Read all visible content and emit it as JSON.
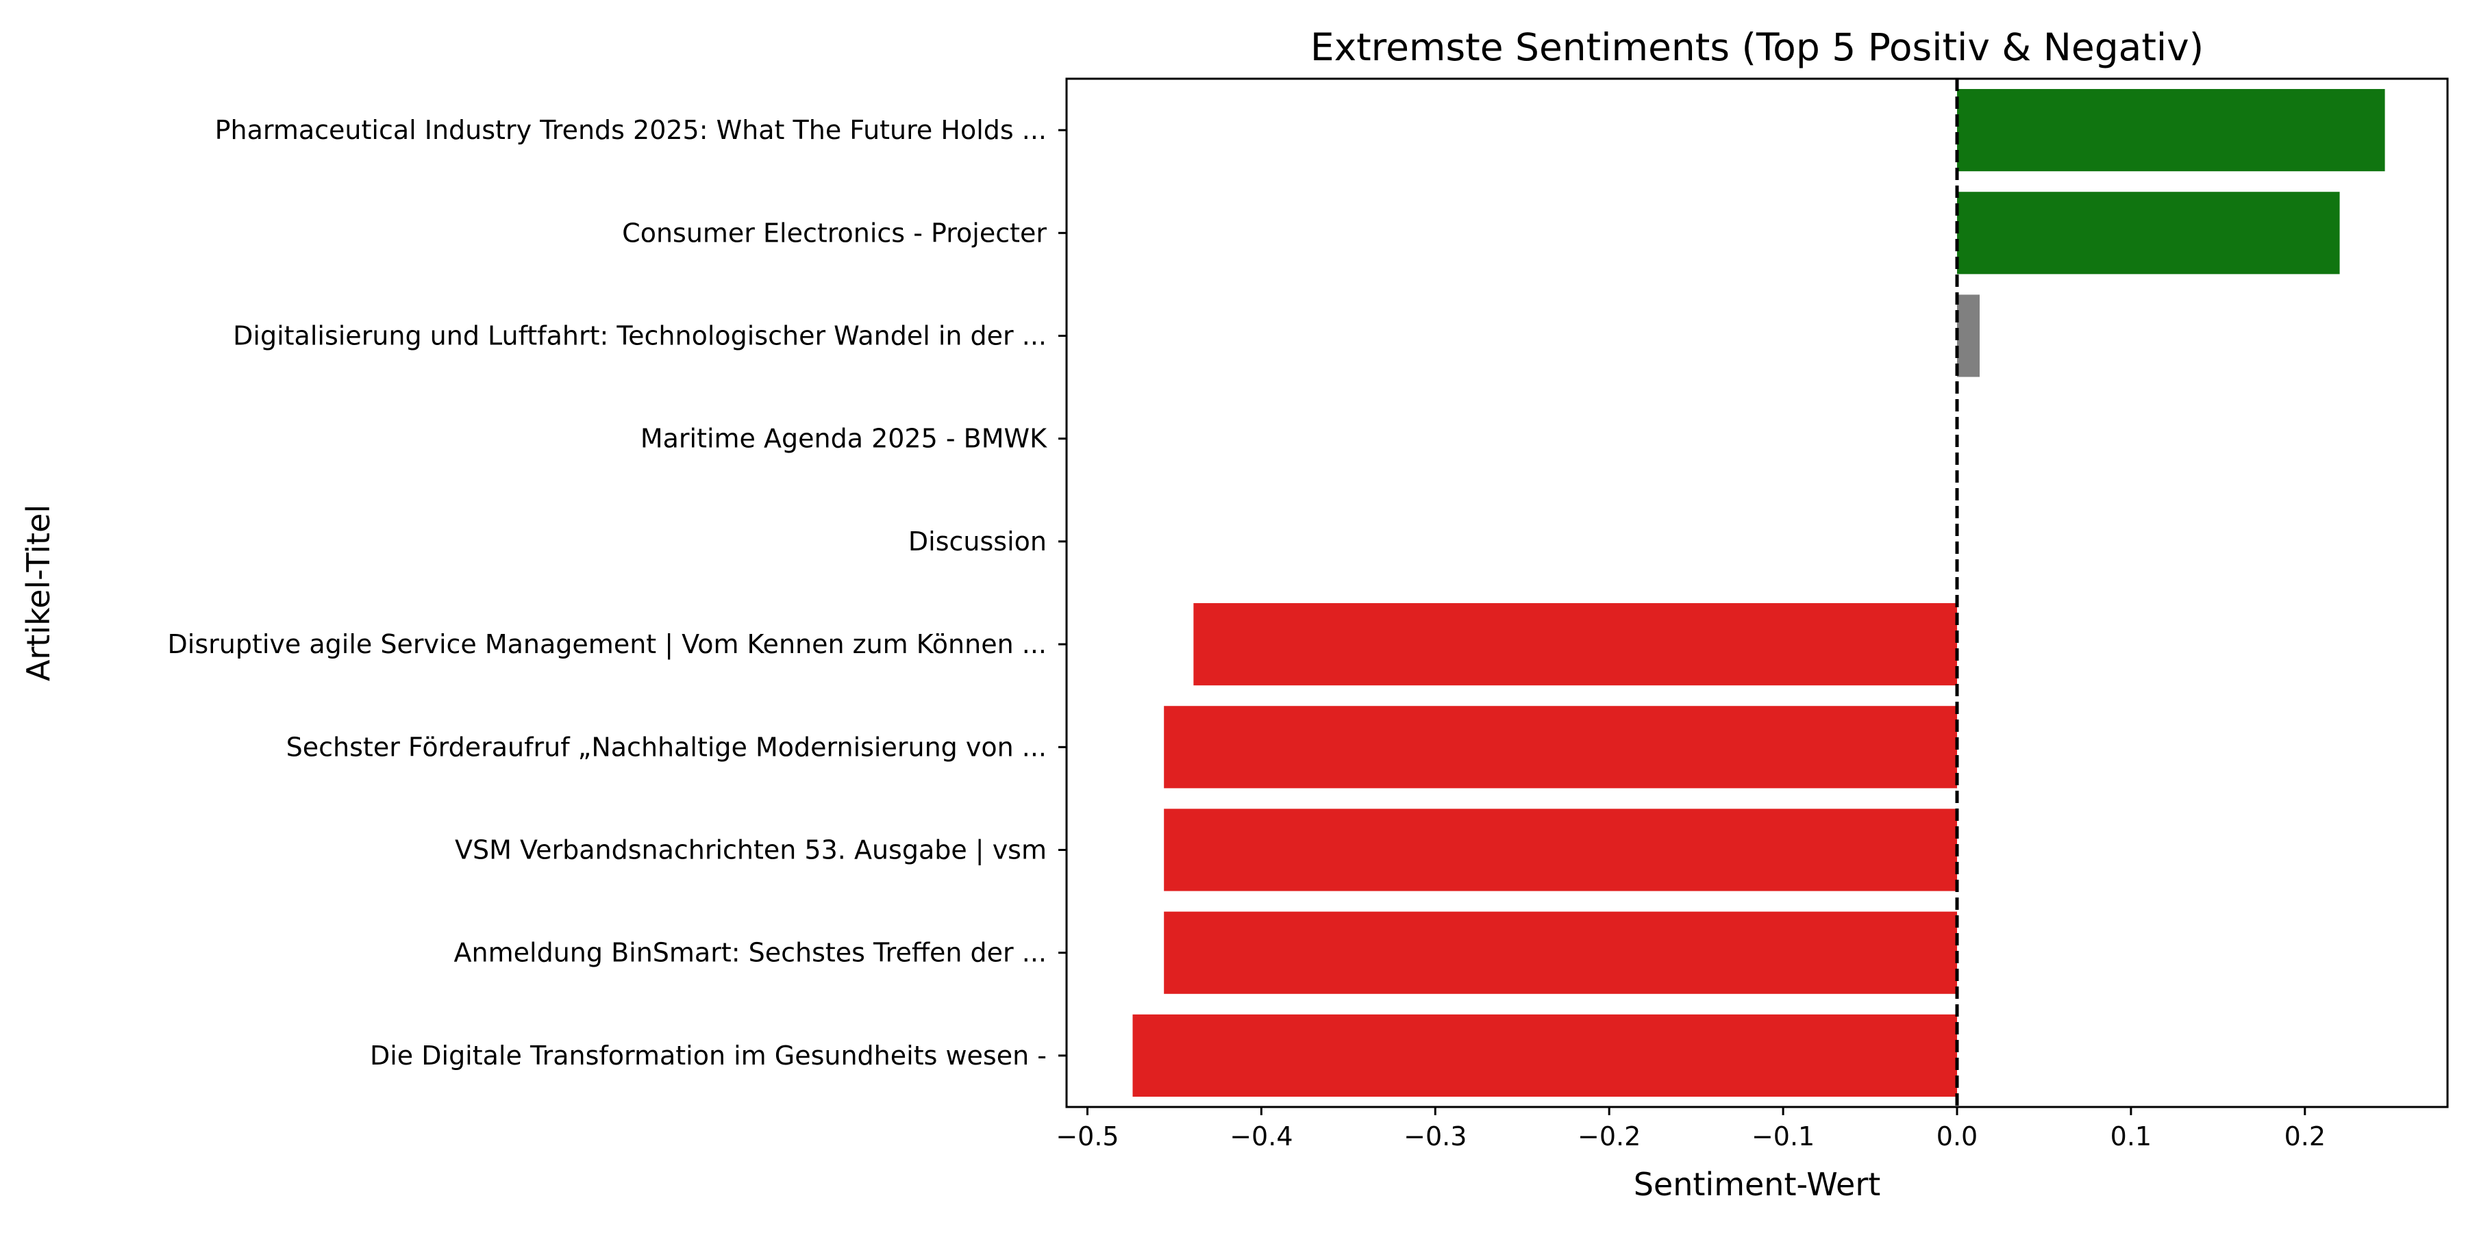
{
  "chart_data": {
    "type": "bar",
    "orientation": "horizontal",
    "title": "Extremste Sentiments (Top 5 Positiv & Negativ)",
    "xlabel": "Sentiment-Wert",
    "ylabel": "Artikel-Titel",
    "xlim": [
      -0.512,
      0.282
    ],
    "x_ticks": [
      -0.5,
      -0.4,
      -0.3,
      -0.2,
      -0.1,
      0.0,
      0.1,
      0.2
    ],
    "x_tick_labels": [
      "−0.5",
      "−0.4",
      "−0.3",
      "−0.2",
      "−0.1",
      "0.0",
      "0.1",
      "0.2"
    ],
    "reference_line": {
      "x": 0.0,
      "style": "dashed",
      "color": "#000000"
    },
    "grid": false,
    "legend": null,
    "categories": [
      "Pharmaceutical Industry Trends 2025: What The Future Holds ...",
      "Consumer Electronics - Projecter",
      "Digitalisierung und Luftfahrt: Technologischer Wandel in der ...",
      "Maritime Agenda 2025 - BMWK",
      "Discussion",
      "Disruptive agile Service Management | Vom Kennen zum Können ...",
      "Sechster Förderaufruf „Nachhaltige Modernisierung von ...",
      "VSM Verbandsnachrichten 53. Ausgabe | vsm",
      "Anmeldung BinSmart: Sechstes Treffen der ...",
      "Die Digitale Transformation im Gesundheits wesen -"
    ],
    "values": [
      0.246,
      0.22,
      0.013,
      0.0,
      0.0,
      -0.439,
      -0.456,
      -0.456,
      -0.456,
      -0.474
    ],
    "colors": {
      "positive": "#107510",
      "neutral": "#808080",
      "negative": "#e02020"
    },
    "bar_color_keys": [
      "positive",
      "positive",
      "neutral",
      "neutral",
      "neutral",
      "negative",
      "negative",
      "negative",
      "negative",
      "negative"
    ]
  }
}
